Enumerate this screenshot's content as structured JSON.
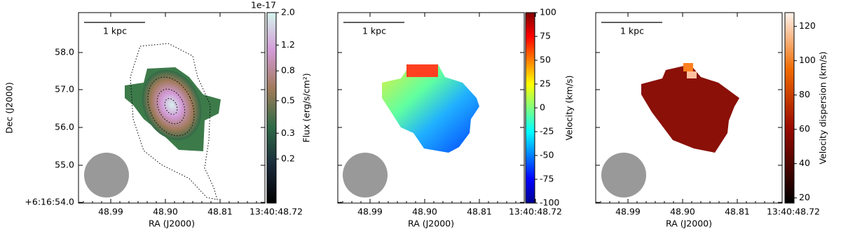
{
  "panels": [
    {
      "scale_bar": "1 kpc",
      "x_label": "RA (J2000)",
      "y_label": "Dec (J2000)",
      "x_ticks": [
        "48.99",
        "48.90",
        "48.81",
        "13:40:48.72"
      ],
      "y_ticks": [
        "58.0",
        "57.0",
        "56.0",
        "55.0",
        "+6:16:54.0"
      ],
      "colorbar": {
        "label": "Flux (erg/s/cm²)",
        "offset_label": "1e-17",
        "scale": "log",
        "lim": [
          0.1,
          2.0
        ],
        "ticks": [
          0.2,
          0.3,
          0.5,
          0.8,
          1.2,
          {
            "value": 2.0,
            "label": "2.0"
          }
        ]
      }
    },
    {
      "scale_bar": "1 kpc",
      "x_label": "RA (J2000)",
      "x_ticks": [
        "48.99",
        "48.90",
        "48.81",
        "13:40:48.72"
      ],
      "colorbar": {
        "label": "Velocity (km/s)",
        "scale": "linear",
        "lim": [
          -100,
          100
        ],
        "ticks": [
          -100,
          -75,
          -50,
          -25,
          0,
          25,
          50,
          75,
          100
        ]
      }
    },
    {
      "scale_bar": "1 kpc",
      "x_label": "RA (J2000)",
      "x_ticks": [
        "48.99",
        "48.90",
        "48.81",
        "13:40:48.72"
      ],
      "colorbar": {
        "label": "Velocity dispersion (km/s)",
        "scale": "linear",
        "lim": [
          17,
          128
        ],
        "ticks": [
          20,
          40,
          60,
          80,
          100,
          120
        ]
      }
    }
  ]
}
